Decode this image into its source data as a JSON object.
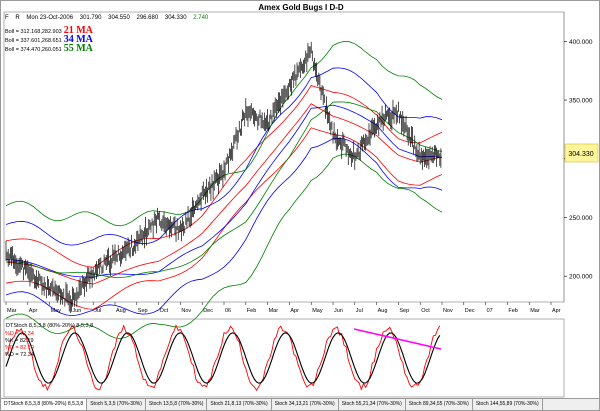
{
  "title": "Amex Gold Bugs I D-D",
  "header": {
    "f_label": "F",
    "r_label": "R",
    "date": "Mon 23-Oct-2006",
    "open": "301.790",
    "high": "304.550",
    "low": "296.680",
    "close": "304.330",
    "change": "2.740"
  },
  "bollinger": [
    {
      "label": "Boll = 312.168,282.903",
      "ma": "21 MA",
      "color": "#ff0000"
    },
    {
      "label": "Boll = 337.601,268.651",
      "ma": "34 MA",
      "color": "#0000ff"
    },
    {
      "label": "Boll = 374.470,260.051",
      "ma": "55 MA",
      "color": "#008000"
    }
  ],
  "price_badge": "304.330",
  "chart_data": [
    {
      "type": "line",
      "title": "Amex Gold Bugs I D-D",
      "x_tick_labels": [
        "Mar",
        "Apr",
        "May",
        "Jun",
        "Jul",
        "Aug",
        "Sep",
        "Oct",
        "Nov",
        "Dec",
        "06",
        "Feb",
        "Mar",
        "Apr",
        "May",
        "Jun",
        "Jul",
        "Aug",
        "Sep",
        "Oct",
        "Nov",
        "Dec",
        "07",
        "Feb",
        "Mar",
        "Apr"
      ],
      "y_tick_labels": [
        "400.000",
        "350.000",
        "300.000",
        "250.000",
        "200.000"
      ],
      "ylim": [
        178,
        425
      ],
      "grid": false,
      "series": [
        {
          "name": "Price (daily OHLC bars)",
          "x": [
            0,
            1,
            2,
            3,
            4,
            5,
            6,
            7,
            8,
            9,
            10,
            11,
            12,
            13,
            14,
            15,
            16,
            17,
            18,
            19,
            20
          ],
          "values": [
            220,
            203,
            188,
            180,
            203,
            216,
            228,
            250,
            238,
            268,
            288,
            340,
            330,
            362,
            390,
            320,
            302,
            330,
            340,
            300,
            304
          ]
        },
        {
          "name": "21 MA",
          "color": "#ff0000",
          "x": [
            0,
            4,
            7,
            9,
            11,
            13,
            14,
            15,
            17,
            18,
            19,
            20
          ],
          "values": [
            212,
            195,
            212,
            238,
            275,
            325,
            348,
            335,
            320,
            305,
            298,
            300
          ]
        },
        {
          "name": "34 MA",
          "color": "#0000ff",
          "x": [
            0,
            4,
            7,
            9,
            11,
            13,
            14,
            15,
            17,
            18,
            19,
            20
          ],
          "values": [
            214,
            198,
            205,
            225,
            262,
            315,
            345,
            345,
            330,
            310,
            300,
            300
          ]
        },
        {
          "name": "55 MA",
          "color": "#008000",
          "x": [
            0,
            4,
            7,
            9,
            11,
            13,
            14,
            15,
            17,
            18,
            19,
            20
          ],
          "values": [
            212,
            200,
            202,
            218,
            248,
            300,
            335,
            348,
            342,
            322,
            310,
            308
          ]
        }
      ]
    },
    {
      "type": "line",
      "title": "DTStoch 8,5,3,8 (80%-20%) 8,5,3,8",
      "legend": [
        "%D = 72.34",
        "%K = 82.19",
        "%D = 82.19",
        "%D = 72.34"
      ],
      "ylim": [
        0,
        100
      ],
      "series": [
        {
          "name": "%K",
          "color": "#ff0000"
        },
        {
          "name": "%D",
          "color": "#000000"
        }
      ],
      "annotations": [
        "trend line (magenta) drawn across stochastic highs from Jul to Oct"
      ]
    }
  ],
  "stoch": {
    "title": "DTStoch 8,5,3,8 (80%-20%) 8,5,3,8",
    "legend": [
      {
        "text": "%D = 72.34",
        "color": "#ff0000"
      },
      {
        "text": "%K = 82.19",
        "color": "#000000"
      },
      {
        "text": "%D = 82.19",
        "color": "#ff0000"
      },
      {
        "text": "%D = 72.34",
        "color": "#000000"
      }
    ]
  },
  "tabs": [
    "DTStoch 8,5,3,8 (80%-20%) 8,5,3,8",
    "Stoch 5,3,5 (70%-30%)",
    "Stoch 13,5,8 (70%-30%)",
    "Stoch 21,8,13 (70%-30%)",
    "Stoch 34,13,21 (70%-30%)",
    "Stoch 55,21,34 (70%-30%)",
    "Stoch 89,34,55 (70%-30%)",
    "Stoch 144,55,89 (70%-30%)"
  ]
}
